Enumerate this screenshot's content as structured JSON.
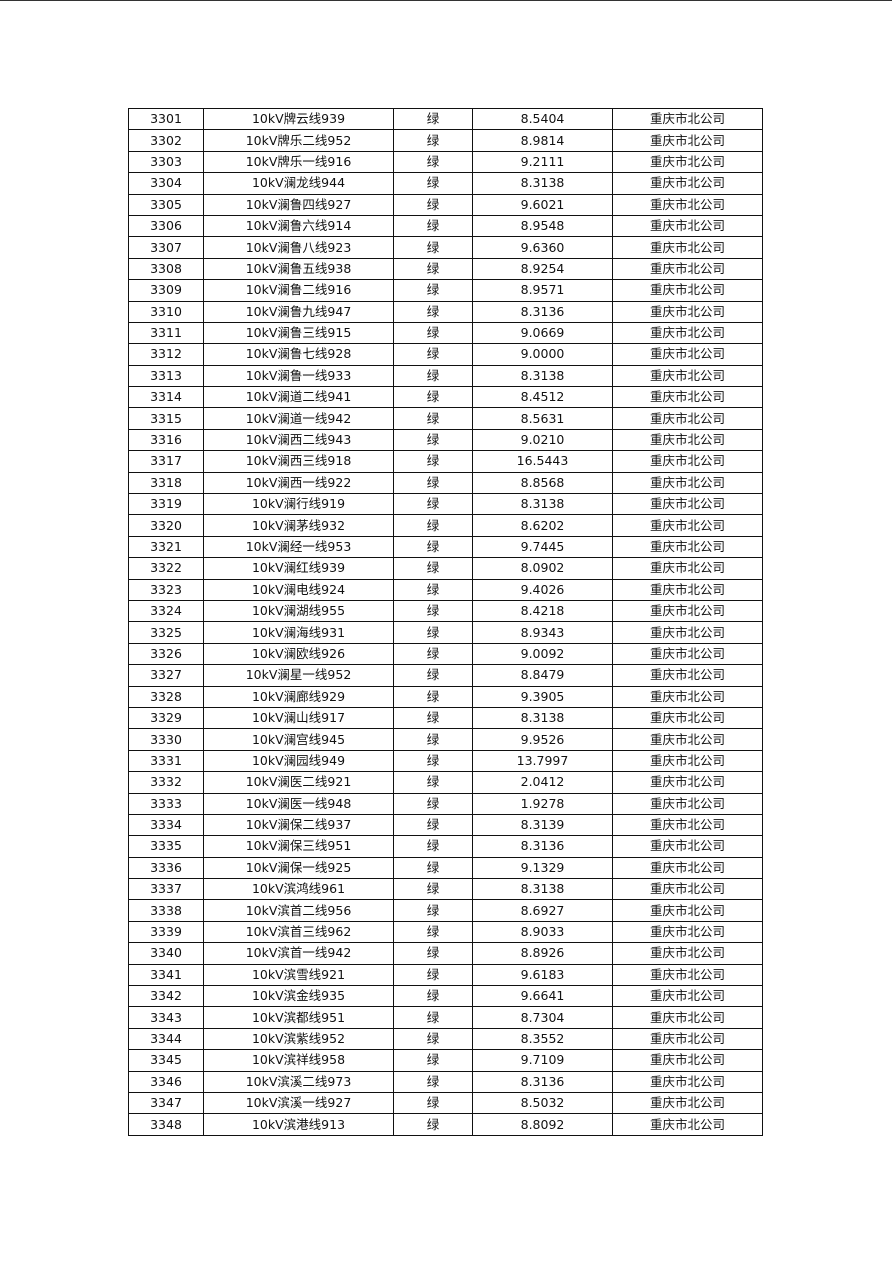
{
  "table": {
    "rows": [
      [
        "3301",
        "10kV牌云线939",
        "绿",
        "8.5404",
        "重庆市北公司"
      ],
      [
        "3302",
        "10kV牌乐二线952",
        "绿",
        "8.9814",
        "重庆市北公司"
      ],
      [
        "3303",
        "10kV牌乐一线916",
        "绿",
        "9.2111",
        "重庆市北公司"
      ],
      [
        "3304",
        "10kV澜龙线944",
        "绿",
        "8.3138",
        "重庆市北公司"
      ],
      [
        "3305",
        "10kV澜鲁四线927",
        "绿",
        "9.6021",
        "重庆市北公司"
      ],
      [
        "3306",
        "10kV澜鲁六线914",
        "绿",
        "8.9548",
        "重庆市北公司"
      ],
      [
        "3307",
        "10kV澜鲁八线923",
        "绿",
        "9.6360",
        "重庆市北公司"
      ],
      [
        "3308",
        "10kV澜鲁五线938",
        "绿",
        "8.9254",
        "重庆市北公司"
      ],
      [
        "3309",
        "10kV澜鲁二线916",
        "绿",
        "8.9571",
        "重庆市北公司"
      ],
      [
        "3310",
        "10kV澜鲁九线947",
        "绿",
        "8.3136",
        "重庆市北公司"
      ],
      [
        "3311",
        "10kV澜鲁三线915",
        "绿",
        "9.0669",
        "重庆市北公司"
      ],
      [
        "3312",
        "10kV澜鲁七线928",
        "绿",
        "9.0000",
        "重庆市北公司"
      ],
      [
        "3313",
        "10kV澜鲁一线933",
        "绿",
        "8.3138",
        "重庆市北公司"
      ],
      [
        "3314",
        "10kV澜道二线941",
        "绿",
        "8.4512",
        "重庆市北公司"
      ],
      [
        "3315",
        "10kV澜道一线942",
        "绿",
        "8.5631",
        "重庆市北公司"
      ],
      [
        "3316",
        "10kV澜西二线943",
        "绿",
        "9.0210",
        "重庆市北公司"
      ],
      [
        "3317",
        "10kV澜西三线918",
        "绿",
        "16.5443",
        "重庆市北公司"
      ],
      [
        "3318",
        "10kV澜西一线922",
        "绿",
        "8.8568",
        "重庆市北公司"
      ],
      [
        "3319",
        "10kV澜行线919",
        "绿",
        "8.3138",
        "重庆市北公司"
      ],
      [
        "3320",
        "10kV澜茅线932",
        "绿",
        "8.6202",
        "重庆市北公司"
      ],
      [
        "3321",
        "10kV澜经一线953",
        "绿",
        "9.7445",
        "重庆市北公司"
      ],
      [
        "3322",
        "10kV澜红线939",
        "绿",
        "8.0902",
        "重庆市北公司"
      ],
      [
        "3323",
        "10kV澜电线924",
        "绿",
        "9.4026",
        "重庆市北公司"
      ],
      [
        "3324",
        "10kV澜湖线955",
        "绿",
        "8.4218",
        "重庆市北公司"
      ],
      [
        "3325",
        "10kV澜海线931",
        "绿",
        "8.9343",
        "重庆市北公司"
      ],
      [
        "3326",
        "10kV澜欧线926",
        "绿",
        "9.0092",
        "重庆市北公司"
      ],
      [
        "3327",
        "10kV澜星一线952",
        "绿",
        "8.8479",
        "重庆市北公司"
      ],
      [
        "3328",
        "10kV澜廊线929",
        "绿",
        "9.3905",
        "重庆市北公司"
      ],
      [
        "3329",
        "10kV澜山线917",
        "绿",
        "8.3138",
        "重庆市北公司"
      ],
      [
        "3330",
        "10kV澜宫线945",
        "绿",
        "9.9526",
        "重庆市北公司"
      ],
      [
        "3331",
        "10kV澜园线949",
        "绿",
        "13.7997",
        "重庆市北公司"
      ],
      [
        "3332",
        "10kV澜医二线921",
        "绿",
        "2.0412",
        "重庆市北公司"
      ],
      [
        "3333",
        "10kV澜医一线948",
        "绿",
        "1.9278",
        "重庆市北公司"
      ],
      [
        "3334",
        "10kV澜保二线937",
        "绿",
        "8.3139",
        "重庆市北公司"
      ],
      [
        "3335",
        "10kV澜保三线951",
        "绿",
        "8.3136",
        "重庆市北公司"
      ],
      [
        "3336",
        "10kV澜保一线925",
        "绿",
        "9.1329",
        "重庆市北公司"
      ],
      [
        "3337",
        "10kV滨鸿线961",
        "绿",
        "8.3138",
        "重庆市北公司"
      ],
      [
        "3338",
        "10kV滨首二线956",
        "绿",
        "8.6927",
        "重庆市北公司"
      ],
      [
        "3339",
        "10kV滨首三线962",
        "绿",
        "8.9033",
        "重庆市北公司"
      ],
      [
        "3340",
        "10kV滨首一线942",
        "绿",
        "8.8926",
        "重庆市北公司"
      ],
      [
        "3341",
        "10kV滨雪线921",
        "绿",
        "9.6183",
        "重庆市北公司"
      ],
      [
        "3342",
        "10kV滨金线935",
        "绿",
        "9.6641",
        "重庆市北公司"
      ],
      [
        "3343",
        "10kV滨都线951",
        "绿",
        "8.7304",
        "重庆市北公司"
      ],
      [
        "3344",
        "10kV滨紫线952",
        "绿",
        "8.3552",
        "重庆市北公司"
      ],
      [
        "3345",
        "10kV滨祥线958",
        "绿",
        "9.7109",
        "重庆市北公司"
      ],
      [
        "3346",
        "10kV滨溪二线973",
        "绿",
        "8.3136",
        "重庆市北公司"
      ],
      [
        "3347",
        "10kV滨溪一线927",
        "绿",
        "8.5032",
        "重庆市北公司"
      ],
      [
        "3348",
        "10kV滨港线913",
        "绿",
        "8.8092",
        "重庆市北公司"
      ]
    ]
  }
}
